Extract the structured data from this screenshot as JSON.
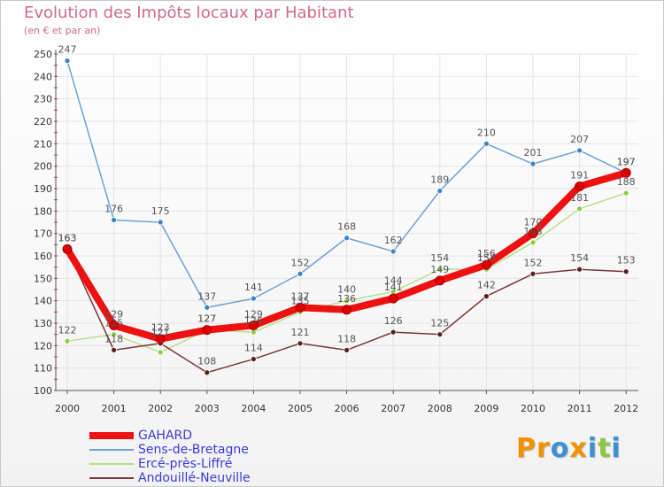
{
  "title": "Evolution des Impôts locaux par Habitant",
  "subtitle": "(en € et par an)",
  "logo": {
    "letters": [
      "P",
      "r",
      "o",
      "x",
      "i",
      "t",
      "i"
    ],
    "colors": [
      "#f29100",
      "#f29100",
      "#3d8fd6",
      "#f29100",
      "#3d8fd6",
      "#8cc63e",
      "#3d8fd6"
    ]
  },
  "colors": {
    "axis": "#555555",
    "grid": "#e4e4e4",
    "tick_text": "#333333",
    "label_text": "#555555",
    "axis_accent": "#cc3344"
  },
  "chart_data": {
    "type": "line",
    "title": "Evolution des Impôts locaux par Habitant",
    "subtitle": "(en € et par an)",
    "xlabel": "",
    "ylabel": "",
    "ylim": [
      100,
      250
    ],
    "y_ticks": [
      100,
      110,
      120,
      130,
      140,
      150,
      160,
      170,
      180,
      190,
      200,
      210,
      220,
      230,
      240,
      250
    ],
    "x": [
      "2000",
      "2001",
      "2002",
      "2003",
      "2004",
      "2005",
      "2006",
      "2007",
      "2008",
      "2009",
      "2010",
      "2011",
      "2012"
    ],
    "grid": true,
    "legend_position": "bottom-left",
    "series": [
      {
        "name": "Sens-de-Bretagne",
        "color": "#6fa0d4",
        "marker": "#3b84c6",
        "width": "thin",
        "values": [
          247,
          176,
          175,
          137,
          141,
          152,
          168,
          162,
          189,
          210,
          201,
          207,
          197
        ],
        "label_values": [
          247,
          176,
          175,
          137,
          141,
          152,
          168,
          162,
          189,
          210,
          201,
          207,
          197
        ]
      },
      {
        "name": "Ercé-près-Liffré",
        "color": "#b7e089",
        "marker": "#86cf3e",
        "width": "thin",
        "values": [
          122,
          125,
          117,
          127,
          126,
          135,
          140,
          144,
          154,
          154,
          166,
          181,
          188
        ],
        "label_values": [
          122,
          125,
          null,
          127,
          126,
          135,
          140,
          144,
          154,
          154,
          166,
          181,
          188
        ]
      },
      {
        "name": "Andouillé-Neuville",
        "color": "#7c3535",
        "marker": "#5a1e1e",
        "width": "thin",
        "values": [
          163,
          118,
          121,
          108,
          114,
          121,
          118,
          126,
          125,
          142,
          152,
          154,
          153
        ],
        "label_values": [
          163,
          118,
          121,
          108,
          114,
          121,
          118,
          126,
          125,
          142,
          152,
          154,
          153
        ]
      },
      {
        "name": "GAHARD",
        "color": "#ee1111",
        "marker": "#dd0000",
        "width": "thick",
        "values": [
          163,
          129,
          123,
          127,
          129,
          137,
          136,
          141,
          149,
          156,
          170,
          191,
          197
        ],
        "label_values": [
          163,
          129,
          123,
          127,
          129,
          137,
          136,
          141,
          149,
          156,
          170,
          191,
          197
        ]
      }
    ],
    "legend": [
      "GAHARD",
      "Sens-de-Bretagne",
      "Ercé-près-Liffré",
      "Andouillé-Neuville"
    ]
  }
}
